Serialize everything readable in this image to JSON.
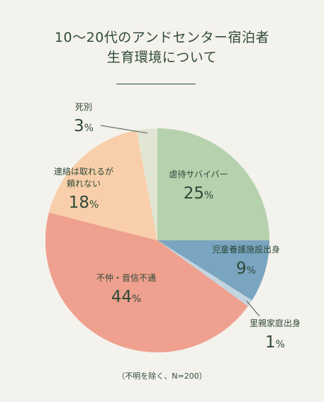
{
  "chart_data": {
    "type": "pie",
    "title_line1": "10～20代のアンドセンター宿泊者",
    "title_line2": "生育環境について",
    "slices": [
      {
        "name": "虐待サバイバー",
        "value": 25,
        "value_label": "25",
        "color": "#b5d1ae"
      },
      {
        "name": "児童養護施設出身",
        "value": 9,
        "value_label": "9",
        "color": "#7aa5c0"
      },
      {
        "name": "里親家庭出身",
        "value": 1,
        "value_label": "1",
        "color": "#c3d5e0"
      },
      {
        "name": "不仲・音信不通",
        "value": 44,
        "value_label": "44",
        "color": "#efa08e"
      },
      {
        "name_line1": "連絡は取れるが",
        "name_line2": "頼れない",
        "value": 18,
        "value_label": "18",
        "color": "#f8cfaa"
      },
      {
        "name": "死別",
        "value": 3,
        "value_label": "3",
        "color": "#e2e5d4"
      }
    ],
    "percent_sign": "%",
    "footnote": "（不明を除く、N=200）"
  }
}
